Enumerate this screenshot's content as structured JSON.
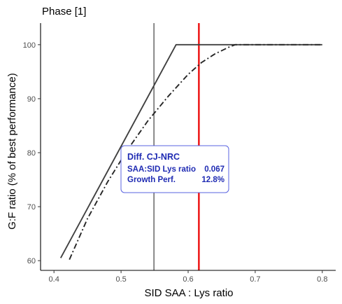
{
  "chart_data": {
    "type": "line",
    "title": "Phase [1]",
    "xlabel": "SID SAA : Lys ratio",
    "ylabel": "G:F ratio (% of best performance)",
    "xlim": [
      0.38,
      0.82
    ],
    "ylim": [
      58.2,
      104
    ],
    "x_ticks": [
      0.4,
      0.5,
      0.6,
      0.7,
      0.8
    ],
    "x_tick_labels": [
      "0.4",
      "0.5",
      "0.6",
      "0.7",
      "0.8"
    ],
    "y_ticks": [
      60,
      70,
      80,
      90,
      100
    ],
    "y_tick_labels": [
      "60",
      "70",
      "80",
      "90",
      "100"
    ],
    "grid": false,
    "series": [
      {
        "style": "solid",
        "color": "#404040",
        "x": [
          0.41,
          0.582,
          0.8
        ],
        "y": [
          60.5,
          100,
          100
        ]
      },
      {
        "style": "dashdot",
        "color": "#262626",
        "x": [
          0.423,
          0.45,
          0.48,
          0.51,
          0.54,
          0.57,
          0.6,
          0.62,
          0.64,
          0.66,
          0.67,
          0.7,
          0.75,
          0.8
        ],
        "y": [
          60.2,
          67.8,
          74.6,
          80.6,
          85.9,
          90.4,
          94.5,
          96.7,
          98.3,
          99.5,
          100,
          100,
          100,
          100
        ]
      }
    ],
    "vlines": [
      {
        "x": 0.549,
        "color": "#1a1a1a",
        "style": "thin"
      },
      {
        "x": 0.616,
        "color": "#ee1c1c",
        "style": "thick"
      }
    ],
    "annotation": {
      "title": "Diff. CJ-NRC",
      "rows": [
        {
          "label": "SAA:SID Lys ratio",
          "value": "0.067"
        },
        {
          "label": "Growth Perf.",
          "value": "12.8%"
        }
      ],
      "text_color": "#1f2bb3",
      "border_color": "#5a63e0"
    }
  }
}
